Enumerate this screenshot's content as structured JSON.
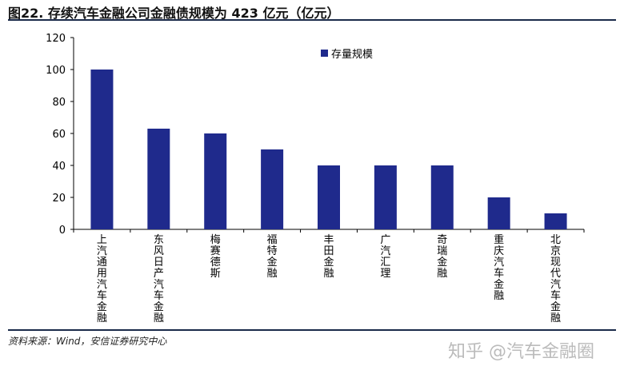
{
  "title": "图22. 存续汽车金融公司金融债规模为 423 亿元（亿元）",
  "source": "资料来源：Wind，安信证券研究中心",
  "watermark": "知乎 @汽车金融圈",
  "chart_data": {
    "type": "bar",
    "title": "",
    "xlabel": "",
    "ylabel": "",
    "categories": [
      "上汽通用汽车金融",
      "东风日产汽车金融",
      "梅赛德斯",
      "福特金融",
      "丰田金融",
      "广汽汇理",
      "奇瑞金融",
      "重庆汽车金融",
      "北京现代汽车金融"
    ],
    "series": [
      {
        "name": "存量规模",
        "values": [
          100,
          63,
          60,
          50,
          40,
          40,
          40,
          20,
          10
        ],
        "color": "#1f2a8c"
      }
    ],
    "ylim": [
      0,
      120
    ],
    "yticks": [
      0,
      20,
      40,
      60,
      80,
      100,
      120
    ],
    "grid": false,
    "legend": "top-center"
  }
}
